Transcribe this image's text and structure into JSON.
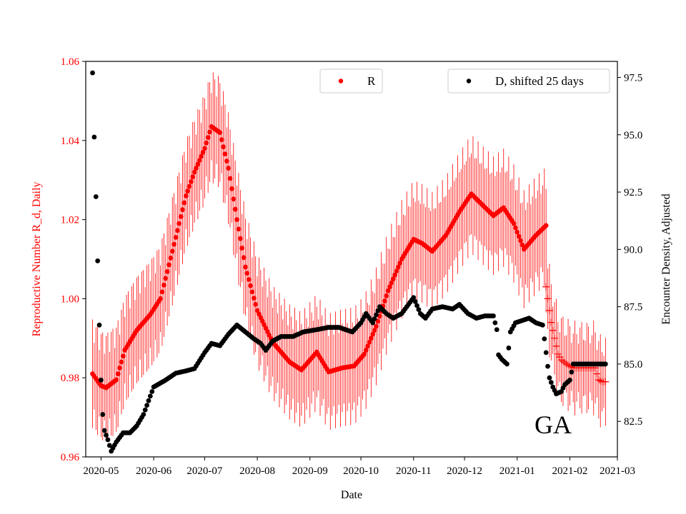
{
  "chart_data": {
    "type": "scatter",
    "title": "",
    "state_label": "GA",
    "xlabel": "Date",
    "ylabel_left": "Reproductive Number R_d, Daily",
    "ylabel_right": "Encounter Density, Adjusted",
    "colors": {
      "r": "#ff0000",
      "d": "#000000",
      "left_axis_text": "#ff0000"
    },
    "x_range": [
      "2020-04-22",
      "2021-03-01"
    ],
    "x_ticks": [
      "2020-05",
      "2020-06",
      "2020-07",
      "2020-08",
      "2020-09",
      "2020-10",
      "2020-11",
      "2020-12",
      "2021-01",
      "2021-02",
      "2021-03"
    ],
    "y_left_range": [
      0.96,
      1.06
    ],
    "y_left_ticks": [
      "0.96",
      "0.98",
      "1.00",
      "1.02",
      "1.04",
      "1.06"
    ],
    "y_right_range": [
      80.95,
      98.2
    ],
    "y_right_ticks": [
      "82.5",
      "85.0",
      "87.5",
      "90.0",
      "92.5",
      "95.0",
      "97.5"
    ],
    "legend": {
      "r_label": "R",
      "d_label": "D, shifted 25 days"
    },
    "series": [
      {
        "name": "R",
        "axis": "left",
        "marker": "dot",
        "error_band_halfwidth": 0.015,
        "start": "2020-04-26",
        "end": "2021-01-18",
        "points": [
          [
            "2020-04-26",
            0.981
          ],
          [
            "2020-05-01",
            0.978
          ],
          [
            "2020-05-04",
            0.9775
          ],
          [
            "2020-05-10",
            0.9795
          ],
          [
            "2020-05-15",
            0.987
          ],
          [
            "2020-05-22",
            0.992
          ],
          [
            "2020-05-30",
            0.996
          ],
          [
            "2020-06-05",
            1.0
          ],
          [
            "2020-06-12",
            1.012
          ],
          [
            "2020-06-20",
            1.026
          ],
          [
            "2020-06-25",
            1.032
          ],
          [
            "2020-07-01",
            1.038
          ],
          [
            "2020-07-05",
            1.0435
          ],
          [
            "2020-07-10",
            1.042
          ],
          [
            "2020-07-15",
            1.033
          ],
          [
            "2020-07-20",
            1.02
          ],
          [
            "2020-07-25",
            1.008
          ],
          [
            "2020-08-01",
            0.997
          ],
          [
            "2020-08-10",
            0.989
          ],
          [
            "2020-08-20",
            0.984
          ],
          [
            "2020-08-27",
            0.982
          ],
          [
            "2020-09-05",
            0.9865
          ],
          [
            "2020-09-12",
            0.9815
          ],
          [
            "2020-09-20",
            0.9825
          ],
          [
            "2020-09-27",
            0.983
          ],
          [
            "2020-10-03",
            0.986
          ],
          [
            "2020-10-10",
            0.993
          ],
          [
            "2020-10-17",
            1.002
          ],
          [
            "2020-10-25",
            1.01
          ],
          [
            "2020-11-01",
            1.015
          ],
          [
            "2020-11-06",
            1.014
          ],
          [
            "2020-11-12",
            1.012
          ],
          [
            "2020-11-20",
            1.016
          ],
          [
            "2020-11-28",
            1.022
          ],
          [
            "2020-12-05",
            1.0265
          ],
          [
            "2020-12-12",
            1.0235
          ],
          [
            "2020-12-18",
            1.021
          ],
          [
            "2020-12-24",
            1.023
          ],
          [
            "2020-12-30",
            1.019
          ],
          [
            "2021-01-05",
            1.0125
          ],
          [
            "2021-01-12",
            1.016
          ],
          [
            "2021-01-18",
            1.0185
          ]
        ]
      },
      {
        "name": "R tail",
        "axis": "left",
        "marker": "plus",
        "start": "2021-01-18",
        "end": "2021-02-22",
        "points": [
          [
            "2021-01-18",
            1.003
          ],
          [
            "2021-01-19",
            1.0
          ],
          [
            "2021-01-20",
            0.997
          ],
          [
            "2021-01-21",
            0.994
          ],
          [
            "2021-01-22",
            0.992
          ],
          [
            "2021-01-23",
            0.99
          ],
          [
            "2021-01-24",
            0.988
          ],
          [
            "2021-01-25",
            0.986
          ],
          [
            "2021-01-27",
            0.9845
          ],
          [
            "2021-01-30",
            0.9835
          ],
          [
            "2021-02-03",
            0.9825
          ],
          [
            "2021-02-07",
            0.9825
          ],
          [
            "2021-02-10",
            0.9825
          ],
          [
            "2021-02-13",
            0.9825
          ],
          [
            "2021-02-16",
            0.9825
          ],
          [
            "2021-02-18",
            0.9795
          ],
          [
            "2021-02-20",
            0.979
          ],
          [
            "2021-02-22",
            0.979
          ]
        ]
      },
      {
        "name": "D, shifted 25 days",
        "axis": "right",
        "marker": "dot",
        "start": "2020-04-26",
        "end": "2021-02-22",
        "points": [
          [
            "2020-04-26",
            97.7
          ],
          [
            "2020-04-27",
            94.9
          ],
          [
            "2020-04-28",
            92.3
          ],
          [
            "2020-04-29",
            89.5
          ],
          [
            "2020-04-30",
            86.7
          ],
          [
            "2020-05-01",
            84.3
          ],
          [
            "2020-05-02",
            82.8
          ],
          [
            "2020-05-03",
            82.1
          ],
          [
            "2020-05-05",
            81.7
          ],
          [
            "2020-05-07",
            81.2
          ],
          [
            "2020-05-10",
            81.6
          ],
          [
            "2020-05-14",
            82.0
          ],
          [
            "2020-05-18",
            82.0
          ],
          [
            "2020-05-22",
            82.3
          ],
          [
            "2020-05-26",
            82.8
          ],
          [
            "2020-06-01",
            84.0
          ],
          [
            "2020-06-08",
            84.3
          ],
          [
            "2020-06-14",
            84.6
          ],
          [
            "2020-06-20",
            84.7
          ],
          [
            "2020-06-25",
            84.8
          ],
          [
            "2020-07-01",
            85.5
          ],
          [
            "2020-07-05",
            85.9
          ],
          [
            "2020-07-10",
            85.8
          ],
          [
            "2020-07-15",
            86.3
          ],
          [
            "2020-07-20",
            86.7
          ],
          [
            "2020-07-25",
            86.4
          ],
          [
            "2020-07-30",
            86.1
          ],
          [
            "2020-08-03",
            85.9
          ],
          [
            "2020-08-06",
            85.6
          ],
          [
            "2020-08-10",
            86.0
          ],
          [
            "2020-08-15",
            86.2
          ],
          [
            "2020-08-22",
            86.2
          ],
          [
            "2020-08-28",
            86.4
          ],
          [
            "2020-09-05",
            86.5
          ],
          [
            "2020-09-12",
            86.6
          ],
          [
            "2020-09-18",
            86.6
          ],
          [
            "2020-09-22",
            86.5
          ],
          [
            "2020-09-26",
            86.4
          ],
          [
            "2020-10-01",
            86.8
          ],
          [
            "2020-10-04",
            87.2
          ],
          [
            "2020-10-08",
            86.8
          ],
          [
            "2020-10-12",
            87.5
          ],
          [
            "2020-10-16",
            87.2
          ],
          [
            "2020-10-20",
            87.0
          ],
          [
            "2020-10-25",
            87.2
          ],
          [
            "2020-10-30",
            87.7
          ],
          [
            "2020-11-01",
            87.9
          ],
          [
            "2020-11-05",
            87.2
          ],
          [
            "2020-11-08",
            87.0
          ],
          [
            "2020-11-12",
            87.4
          ],
          [
            "2020-11-18",
            87.5
          ],
          [
            "2020-11-24",
            87.4
          ],
          [
            "2020-11-28",
            87.6
          ],
          [
            "2020-12-03",
            87.2
          ],
          [
            "2020-12-08",
            87.0
          ],
          [
            "2020-12-13",
            87.1
          ],
          [
            "2020-12-18",
            87.1
          ],
          [
            "2020-12-20",
            86.5
          ],
          [
            "2020-12-21",
            85.4
          ],
          [
            "2020-12-23",
            85.2
          ],
          [
            "2020-12-26",
            85.0
          ],
          [
            "2020-12-28",
            86.4
          ],
          [
            "2020-12-31",
            86.8
          ],
          [
            "2021-01-04",
            86.9
          ],
          [
            "2021-01-08",
            87.0
          ],
          [
            "2021-01-12",
            86.8
          ],
          [
            "2021-01-16",
            86.7
          ],
          [
            "2021-01-19",
            84.9
          ],
          [
            "2021-01-20",
            84.4
          ],
          [
            "2021-01-22",
            84.0
          ],
          [
            "2021-01-24",
            83.7
          ],
          [
            "2021-01-27",
            83.8
          ],
          [
            "2021-01-29",
            84.1
          ],
          [
            "2021-02-01",
            84.3
          ],
          [
            "2021-02-03",
            85.0
          ],
          [
            "2021-02-08",
            85.0
          ],
          [
            "2021-02-14",
            85.0
          ],
          [
            "2021-02-22",
            85.0
          ]
        ]
      }
    ]
  }
}
